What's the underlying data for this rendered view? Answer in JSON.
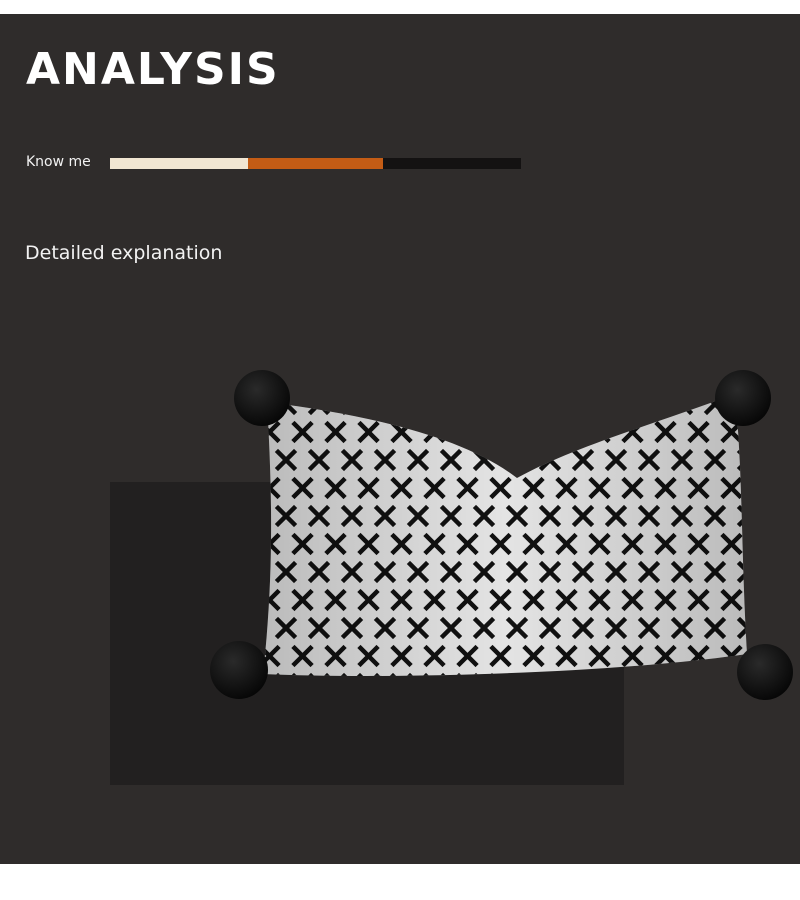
{
  "header": {
    "title": "ANALYSIS"
  },
  "know_me": {
    "label": "Know me",
    "palette": [
      "#f1e6d2",
      "#c45c15",
      "#141212"
    ]
  },
  "explanation": {
    "label": "Detailed explanation"
  },
  "product": {
    "image_icon": "pillow-image",
    "pattern_colors": [
      "#e4e4e4",
      "#111111"
    ],
    "pom_pom_color": "#0b0b0b"
  },
  "colors": {
    "panel_background": "#2f2c2b",
    "shadow_block": "#222020"
  }
}
